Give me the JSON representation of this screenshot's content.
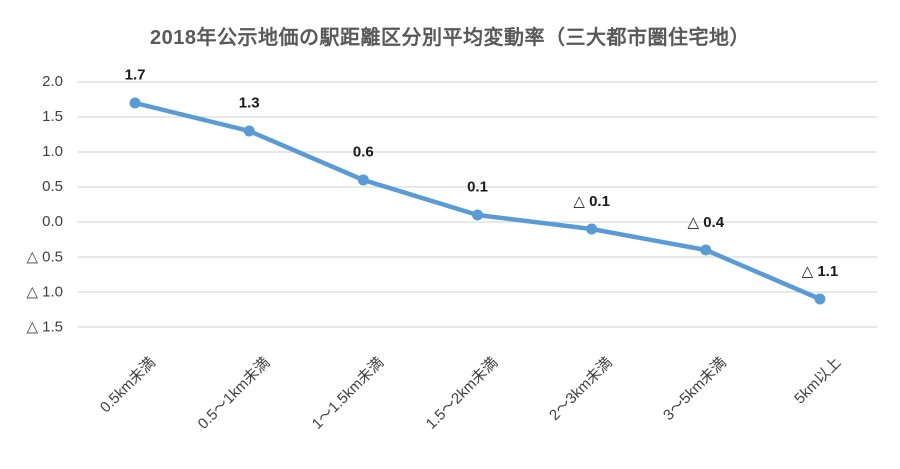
{
  "chart_data": {
    "type": "line",
    "title": "2018年公示地価の駅距離区分別平均変動率（三大都市圏住宅地）",
    "categories": [
      "0.5km未満",
      "0.5～1km未満",
      "1～1.5km未満",
      "1.5～2km未満",
      "2～3km未満",
      "3～5km未満",
      "5km以上"
    ],
    "series": [
      {
        "name": "平均変動率",
        "values": [
          1.7,
          1.3,
          0.6,
          0.1,
          -0.1,
          -0.4,
          -1.1
        ],
        "point_labels": [
          "1.7",
          "1.3",
          "0.6",
          "0.1",
          "△ 0.1",
          "△ 0.4",
          "△ 1.1"
        ]
      }
    ],
    "xlabel": "",
    "ylabel": "",
    "ylim": [
      -1.5,
      2.0
    ],
    "y_ticks": [
      {
        "value": 2.0,
        "label": "2.0"
      },
      {
        "value": 1.5,
        "label": "1.5"
      },
      {
        "value": 1.0,
        "label": "1.0"
      },
      {
        "value": 0.5,
        "label": "0.5"
      },
      {
        "value": 0.0,
        "label": "0.0"
      },
      {
        "value": -0.5,
        "label": "△ 0.5"
      },
      {
        "value": -1.0,
        "label": "△ 1.0"
      },
      {
        "value": -1.5,
        "label": "△ 1.5"
      }
    ],
    "grid": "horizontal",
    "legend": "none",
    "negative_prefix": "△"
  },
  "style": {
    "background": "#ffffff",
    "line_color": "#5B9BD5",
    "marker_color": "#5B9BD5",
    "grid_color": "#D9D9D9",
    "title_color": "#595959",
    "tick_color": "#404040",
    "data_label_color": "#1a1a1a"
  }
}
